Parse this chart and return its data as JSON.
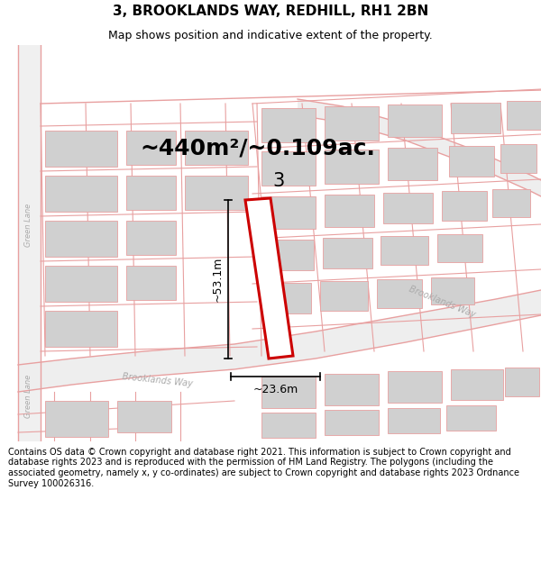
{
  "title": "3, BROOKLANDS WAY, REDHILL, RH1 2BN",
  "subtitle": "Map shows position and indicative extent of the property.",
  "area_label": "~440m²/~0.109ac.",
  "property_number": "3",
  "dim_height": "~53.1m",
  "dim_width": "~23.6m",
  "footer": "Contains OS data © Crown copyright and database right 2021. This information is subject to Crown copyright and database rights 2023 and is reproduced with the permission of HM Land Registry. The polygons (including the associated geometry, namely x, y co-ordinates) are subject to Crown copyright and database rights 2023 Ordnance Survey 100026316.",
  "bg_color": "#ffffff",
  "map_bg": "#f7f7f7",
  "road_color": "#e8a0a0",
  "road_line_color": "#e8a0a0",
  "building_color": "#d0d0d0",
  "building_edge": "#e8a0a0",
  "property_color": "#cc0000",
  "road_label_color": "#aaaaaa",
  "road_label1": "Brooklands Way",
  "road_label2": "Brooklands Way",
  "road_label3": "Green Lane",
  "title_fontsize": 11,
  "subtitle_fontsize": 9,
  "area_fontsize": 18,
  "dim_fontsize": 9,
  "footer_fontsize": 7
}
